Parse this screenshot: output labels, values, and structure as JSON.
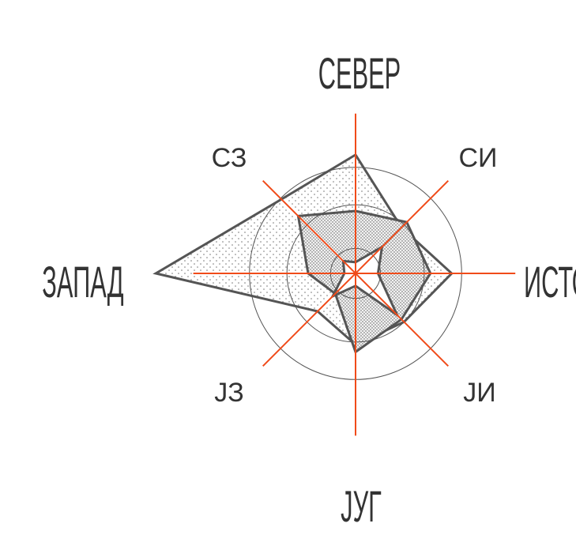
{
  "chart_data": {
    "type": "radar",
    "title": "",
    "directions": [
      "СЕВЕР",
      "СИ",
      "ИСТОК",
      "ЈИ",
      "ЈУГ",
      "ЈЗ",
      "ЗАПАД",
      "СЗ"
    ],
    "direction_labels": [
      {
        "key": "N",
        "text": "СЕВЕР"
      },
      {
        "key": "NE",
        "text": "СИ"
      },
      {
        "key": "E",
        "text": "ИСТОК"
      },
      {
        "key": "SE",
        "text": "ЈИ"
      },
      {
        "key": "S",
        "text": "ЈУГ"
      },
      {
        "key": "SW",
        "text": "ЈЗ"
      },
      {
        "key": "W",
        "text": "ЗАПАД"
      },
      {
        "key": "NW",
        "text": "СЗ"
      }
    ],
    "rings": [
      0.2,
      0.55,
      0.85
    ],
    "radial_max": 1.0,
    "series": [
      {
        "values": [
          0.95,
          0.52,
          0.77,
          0.55,
          0.57,
          0.43,
          1.6,
          0.84
        ],
        "fill": "light-dotted"
      },
      {
        "values": [
          0.5,
          0.58,
          0.6,
          0.52,
          0.63,
          0.23,
          0.38,
          0.65
        ],
        "fill": "dense-dotted"
      },
      {
        "values": [
          0.09,
          0.3,
          0.18,
          0.47,
          0.1,
          0.26,
          0.09,
          0.14
        ],
        "fill": "white"
      }
    ],
    "colors": {
      "axes": "#f04b1a",
      "polygon_stroke": "#555555",
      "rings": "#555555",
      "labels": "#333333"
    }
  }
}
